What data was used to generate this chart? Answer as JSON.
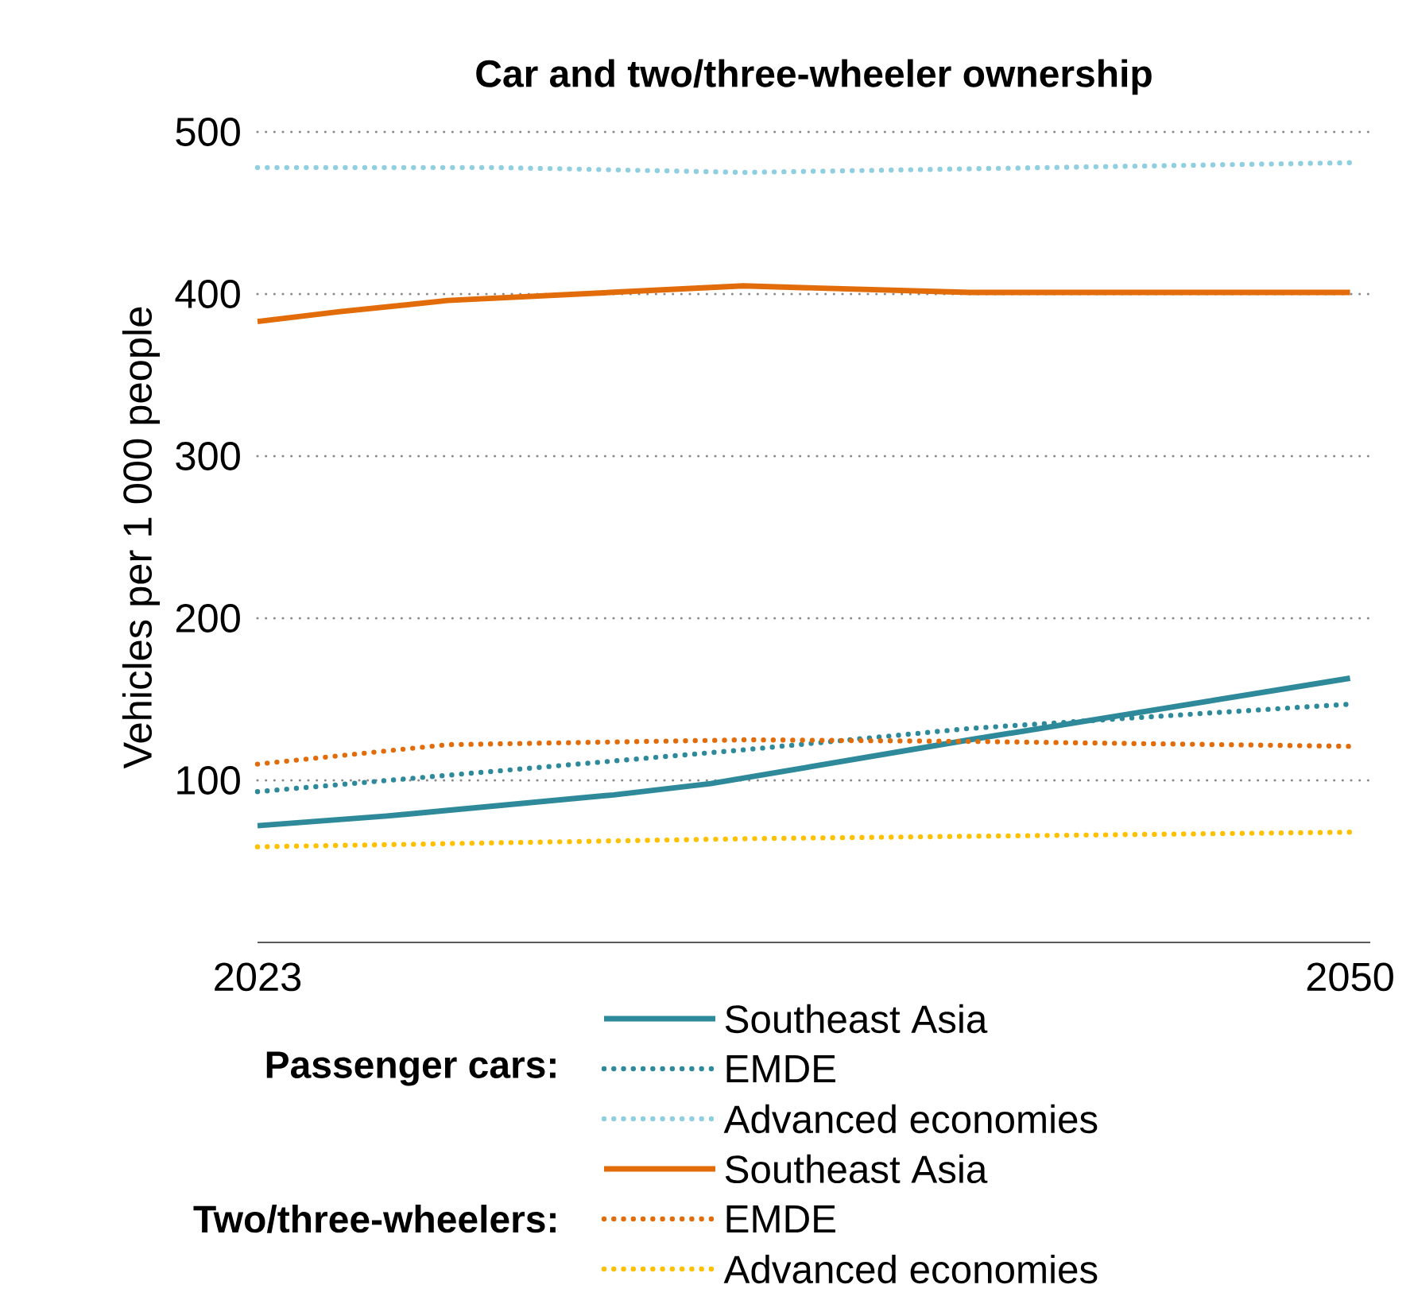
{
  "chart_data": {
    "type": "line",
    "title": "Car and two/three-wheeler ownership",
    "ylabel": "Vehicles per 1 000 people",
    "xlim": [
      2023,
      2050.5
    ],
    "xticks": [
      2023,
      2050
    ],
    "ylim": [
      0,
      500
    ],
    "yticks": [
      100,
      200,
      300,
      400,
      500
    ],
    "grid": "y",
    "legend": "bottom",
    "marker": "none",
    "annotations": [
      "Passenger cars:",
      "Two/three-wheelers:"
    ],
    "series": [
      {
        "name": "Southeast Asia",
        "color": "#2e8a9a",
        "line_style": "solid",
        "x": [
          2023,
          2026.2,
          2031.8,
          2034.2,
          2040.6,
          2050
        ],
        "values": [
          72,
          78,
          91,
          98,
          125,
          163
        ]
      },
      {
        "name": "EMDE",
        "color": "#2e8a9a",
        "line_style": "dotted",
        "x": [
          2023,
          2029.5,
          2035.1,
          2040.6,
          2046.2,
          2050
        ],
        "values": [
          93,
          107,
          119,
          132,
          141,
          147
        ]
      },
      {
        "name": "Advanced economies",
        "color": "#8fcfe0",
        "line_style": "dotted",
        "x": [
          2023,
          2029,
          2035,
          2050
        ],
        "values": [
          478,
          478,
          475,
          481
        ]
      },
      {
        "name": "Southeast Asia",
        "color": "#e36c0a",
        "line_style": "solid",
        "x": [
          2023,
          2025,
          2027.7,
          2035,
          2040.6,
          2050
        ],
        "values": [
          383,
          389,
          396,
          405,
          401,
          401
        ]
      },
      {
        "name": "EMDE",
        "color": "#e36c0a",
        "line_style": "dotted",
        "x": [
          2023,
          2027.7,
          2035.1,
          2040.6,
          2050
        ],
        "values": [
          110,
          122,
          125,
          124,
          121
        ]
      },
      {
        "name": "Advanced economies",
        "color": "#ffc000",
        "line_style": "dotted",
        "x": [
          2023,
          2035.1,
          2050
        ],
        "values": [
          59,
          64,
          68
        ]
      }
    ]
  }
}
